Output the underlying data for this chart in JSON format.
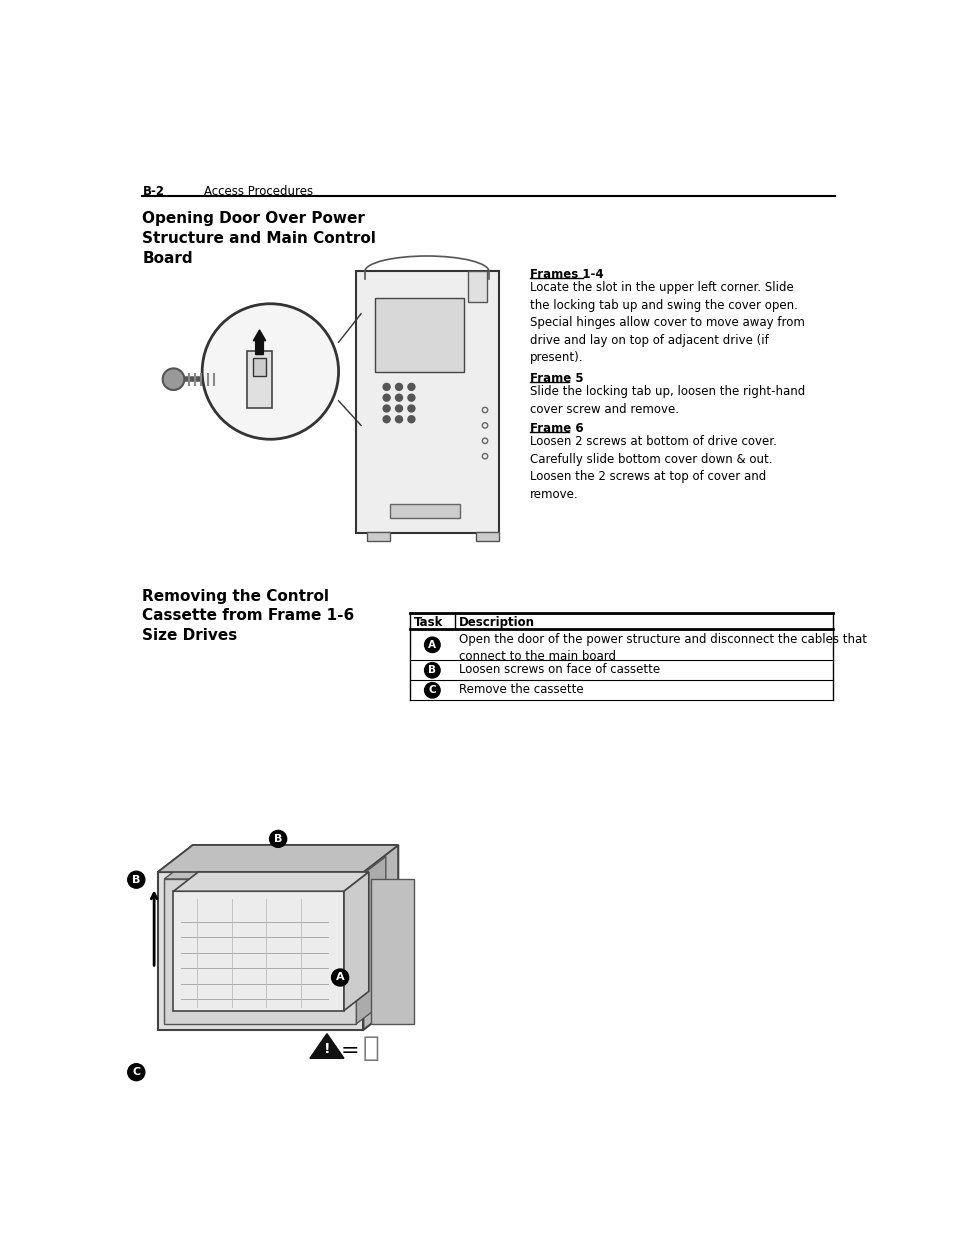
{
  "page_header_left": "B-2",
  "page_header_right": "Access Procedures",
  "section1_title": "Opening Door Over Power\nStructure and Main Control\nBoard",
  "section1_frames14_heading": "Frames 1-4",
  "section1_frames14_text": "Locate the slot in the upper left corner. Slide\nthe locking tab up and swing the cover open.\nSpecial hinges allow cover to move away from\ndrive and lay on top of adjacent drive (if\npresent).",
  "section1_frame5_heading": "Frame 5",
  "section1_frame5_text": "Slide the locking tab up, loosen the right-hand\ncover screw and remove.",
  "section1_frame6_heading": "Frame 6",
  "section1_frame6_text": "Loosen 2 screws at bottom of drive cover.\nCarefully slide bottom cover down & out.\nLoosen the 2 screws at top of cover and\nremove.",
  "section2_title": "Removing the Control\nCassette from Frame 1-6\nSize Drives",
  "table_col1_header": "Task",
  "table_col2_header": "Description",
  "table_rows": [
    [
      "A",
      "Open the door of the power structure and disconnect the cables that\nconnect to the main board"
    ],
    [
      "B",
      "Loosen screws on face of cassette"
    ],
    [
      "C",
      "Remove the cassette"
    ]
  ],
  "bg_color": "#ffffff",
  "text_color": "#000000",
  "line_color": "#000000",
  "font_size_header": 8.5,
  "font_size_body": 8.5,
  "font_size_section_title": 11,
  "font_size_table": 8.5
}
